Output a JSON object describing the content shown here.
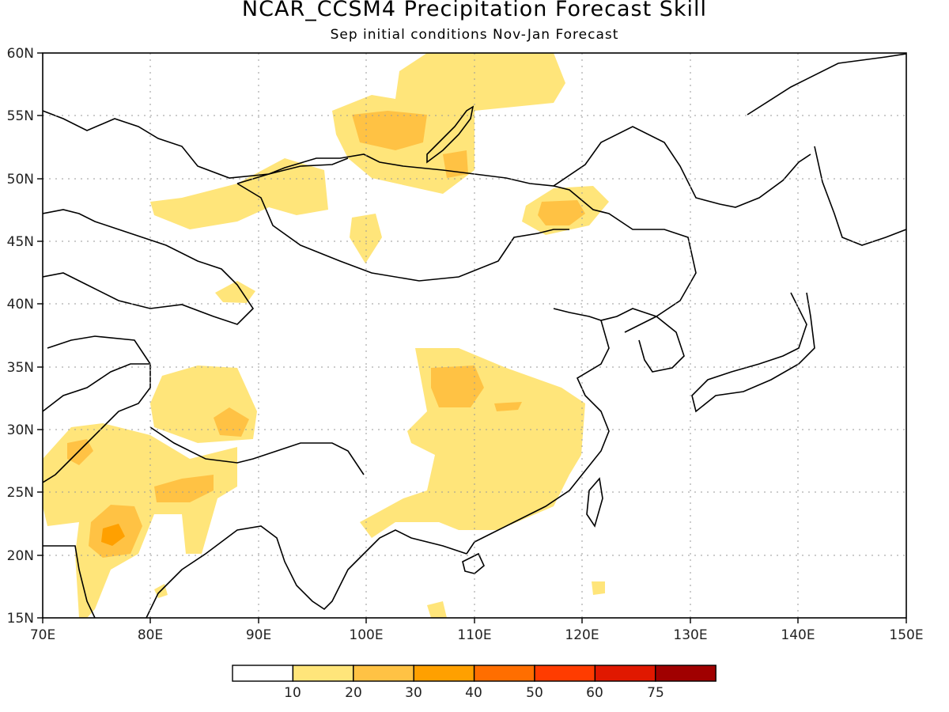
{
  "title": "NCAR_CCSM4 Precipitation Forecast Skill",
  "subtitle": "Sep initial conditions   Nov-Jan Forecast",
  "map": {
    "lon_range": [
      70,
      150
    ],
    "lat_range": [
      15,
      60
    ],
    "lon_ticks": [
      "70E",
      "80E",
      "90E",
      "100E",
      "110E",
      "120E",
      "130E",
      "140E",
      "150E"
    ],
    "lat_ticks": [
      "15N",
      "20N",
      "25N",
      "30N",
      "35N",
      "40N",
      "45N",
      "50N",
      "55N",
      "60N"
    ],
    "grid": "dotted"
  },
  "legend": {
    "colors": [
      "#ffffff",
      "#ffe57a",
      "#ffc244",
      "#ffa000",
      "#ff6e00",
      "#ff3c00",
      "#e01800",
      "#a00000"
    ],
    "labels": [
      "10",
      "20",
      "30",
      "40",
      "50",
      "60",
      "75"
    ]
  }
}
